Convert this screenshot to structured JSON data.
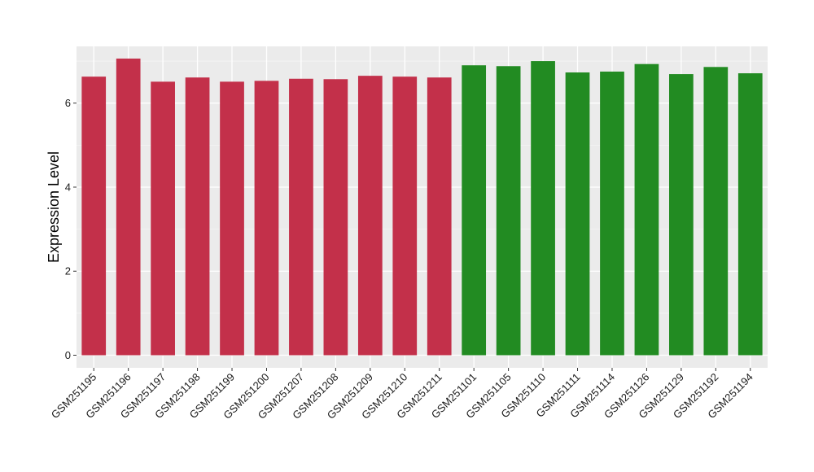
{
  "chart_data": {
    "type": "bar",
    "title": "",
    "xlabel": "",
    "ylabel": "Expression Level",
    "ylim": [
      -0.3,
      7.35
    ],
    "yticks": [
      0,
      2,
      4,
      6
    ],
    "grid": true,
    "categories": [
      "GSM251195",
      "GSM251196",
      "GSM251197",
      "GSM251198",
      "GSM251199",
      "GSM251200",
      "GSM251207",
      "GSM251208",
      "GSM251209",
      "GSM251210",
      "GSM251211",
      "GSM251101",
      "GSM251105",
      "GSM251110",
      "GSM251111",
      "GSM251114",
      "GSM251126",
      "GSM251129",
      "GSM251192",
      "GSM251194"
    ],
    "values": [
      6.63,
      7.06,
      6.51,
      6.61,
      6.51,
      6.53,
      6.58,
      6.57,
      6.65,
      6.63,
      6.61,
      6.9,
      6.88,
      7.0,
      6.73,
      6.75,
      6.93,
      6.69,
      6.86,
      6.71
    ],
    "groups": [
      "red",
      "red",
      "red",
      "red",
      "red",
      "red",
      "red",
      "red",
      "red",
      "red",
      "red",
      "green",
      "green",
      "green",
      "green",
      "green",
      "green",
      "green",
      "green",
      "green"
    ],
    "colors": {
      "red": "#c3304a",
      "green": "#228b22",
      "panel": "#ebebeb",
      "grid_major": "#ffffff",
      "grid_minor": "#f5f5f5"
    }
  }
}
